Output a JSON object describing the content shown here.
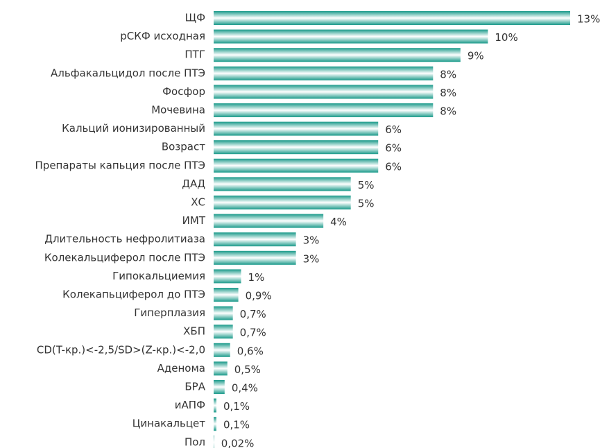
{
  "chart_data": {
    "type": "hbar",
    "color": "#1a9a8a",
    "categories": [
      "ЩФ",
      "рСКФ исходная",
      "ПТГ",
      "Альфакальцидол после ПТЭ",
      "Фосфор",
      "Мочевина",
      "Кальций ионизированный",
      "Возраст",
      "Препараты капьция после ПТЭ",
      "ДАД",
      "ХС",
      "ИМТ",
      "Длительность нефролитиаза",
      "Колекальциферол после ПТЭ",
      "Гипокальциемия",
      "Колекапьциферол до ПТЭ",
      "Гиперплазия",
      "ХБП",
      "CD(T-кр.)<-2,5/SD>(Z-кр.)<-2,0",
      "Аденома",
      "БРА",
      "иАПФ",
      "Цинакальцет",
      "Пол"
    ],
    "values": [
      13,
      10,
      9,
      8,
      8,
      8,
      6,
      6,
      6,
      5,
      5,
      4,
      3,
      3,
      1,
      0.9,
      0.7,
      0.7,
      0.6,
      0.5,
      0.4,
      0.1,
      0.1,
      0.02
    ],
    "value_labels": [
      "13%",
      "10%",
      "9%",
      "8%",
      "8%",
      "8%",
      "6%",
      "6%",
      "6%",
      "5%",
      "5%",
      "4%",
      "3%",
      "3%",
      "1%",
      "0,9%",
      "0,7%",
      "0,7%",
      "0,6%",
      "0,5%",
      "0,4%",
      "0,1%",
      "0,1%",
      "0,02%"
    ]
  }
}
